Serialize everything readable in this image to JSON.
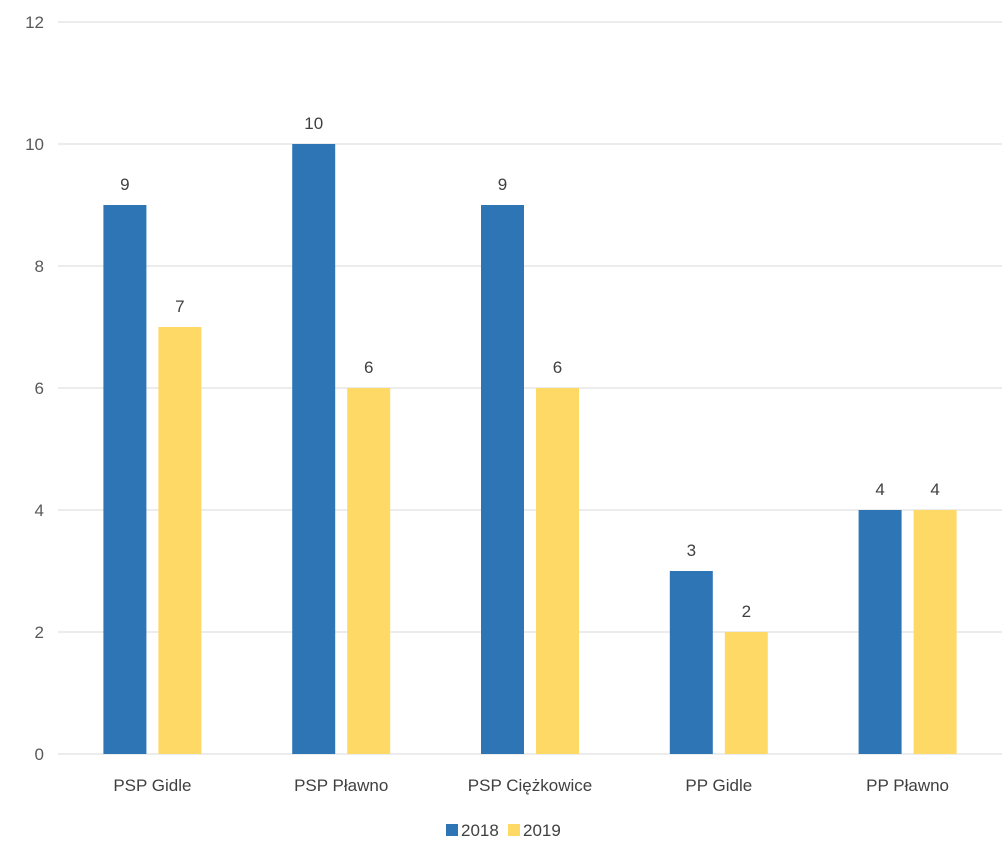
{
  "chart_data": {
    "type": "bar",
    "categories": [
      "PSP Gidle",
      "PSP Pławno",
      "PSP Ciężkowice",
      "PP Gidle",
      "PP Pławno"
    ],
    "series": [
      {
        "name": "2018",
        "values": [
          9,
          10,
          9,
          3,
          4
        ],
        "color": "#2e75b6"
      },
      {
        "name": "2019",
        "values": [
          7,
          6,
          6,
          2,
          4
        ],
        "color": "#ffd966"
      }
    ],
    "title": "",
    "xlabel": "",
    "ylabel": "",
    "ylim": [
      0,
      12
    ],
    "yticks": [
      0,
      2,
      4,
      6,
      8,
      10,
      12
    ],
    "grid": true,
    "data_labels": true,
    "legend_position": "bottom"
  }
}
